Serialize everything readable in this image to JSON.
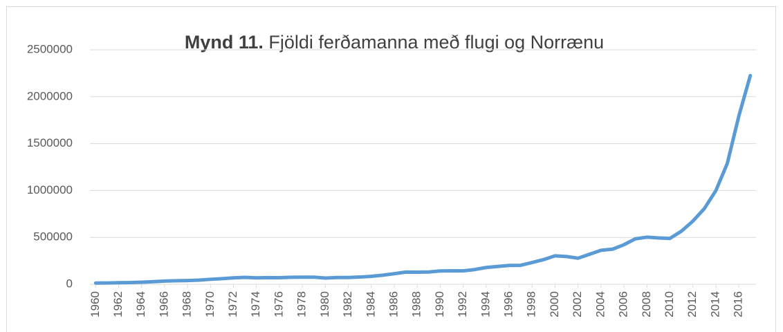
{
  "chart_data": {
    "type": "line",
    "title": [
      "Mynd 11.",
      "Fjöldi ferðamanna með flugi og Norrænu"
    ],
    "x": [
      1960,
      1961,
      1962,
      1963,
      1964,
      1965,
      1966,
      1967,
      1968,
      1969,
      1970,
      1971,
      1972,
      1973,
      1974,
      1975,
      1976,
      1977,
      1978,
      1979,
      1980,
      1981,
      1982,
      1983,
      1984,
      1985,
      1986,
      1987,
      1988,
      1989,
      1990,
      1991,
      1992,
      1993,
      1994,
      1995,
      1996,
      1997,
      1998,
      1999,
      2000,
      2001,
      2002,
      2003,
      2004,
      2005,
      2006,
      2007,
      2008,
      2009,
      2010,
      2011,
      2012,
      2013,
      2014,
      2015,
      2016,
      2017
    ],
    "series": [
      {
        "color": "#5b9bd5",
        "values": [
          13000,
          14000,
          17000,
          18000,
          22000,
          28000,
          34000,
          38000,
          40000,
          44000,
          53000,
          60000,
          68000,
          74000,
          68000,
          71000,
          70000,
          75000,
          76000,
          76000,
          66000,
          72000,
          72000,
          77000,
          85000,
          97000,
          113000,
          130000,
          129000,
          131000,
          142000,
          144000,
          143000,
          157000,
          179000,
          190000,
          201000,
          202000,
          232000,
          263000,
          303000,
          296000,
          278000,
          320000,
          362000,
          374000,
          422000,
          485000,
          502000,
          494000,
          489000,
          566000,
          673000,
          807000,
          998000,
          1289000,
          1792000,
          2225000
        ]
      }
    ],
    "xlim": [
      1959.5,
      2017.5
    ],
    "xticks": [
      1960,
      1962,
      1964,
      1966,
      1968,
      1970,
      1972,
      1974,
      1976,
      1978,
      1980,
      1982,
      1984,
      1986,
      1988,
      1990,
      1992,
      1994,
      1996,
      1998,
      2000,
      2002,
      2004,
      2006,
      2008,
      2010,
      2012,
      2014,
      2016
    ],
    "ylim": [
      0,
      2500000
    ],
    "yticks": [
      0,
      500000,
      1000000,
      1500000,
      2000000,
      2500000
    ],
    "grid": true
  }
}
